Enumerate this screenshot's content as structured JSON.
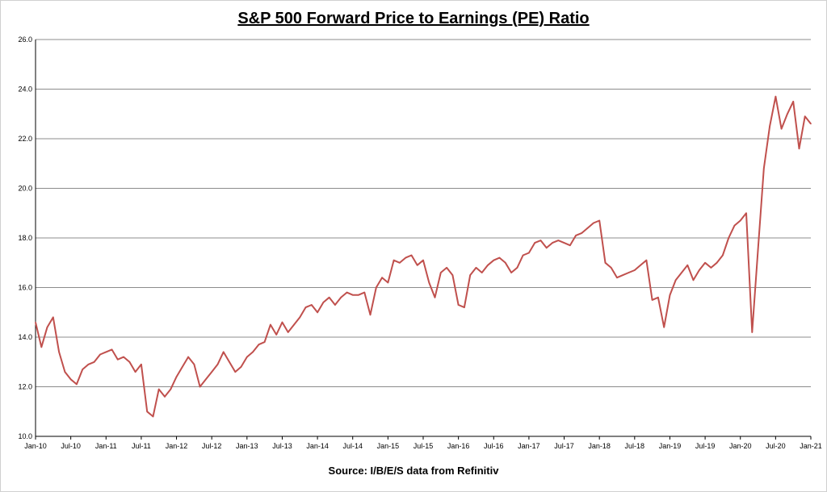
{
  "chart_data": {
    "type": "line",
    "title": "S&P 500 Forward Price to Earnings (PE) Ratio",
    "source": "Source: I/B/E/S data from Refinitiv",
    "xlabel": "",
    "ylabel": "",
    "ylim": [
      10.0,
      26.0
    ],
    "ytick_labels": [
      "10.0",
      "12.0",
      "14.0",
      "16.0",
      "18.0",
      "20.0",
      "22.0",
      "24.0",
      "26.0"
    ],
    "xtick_labels": [
      "Jan-10",
      "Jul-10",
      "Jan-11",
      "Jul-11",
      "Jan-12",
      "Jul-12",
      "Jan-13",
      "Jul-13",
      "Jan-14",
      "Jul-14",
      "Jan-15",
      "Jul-15",
      "Jan-16",
      "Jul-16",
      "Jan-17",
      "Jul-17",
      "Jan-18",
      "Jul-18",
      "Jan-19",
      "Jul-19",
      "Jan-20",
      "Jul-20",
      "Jan-21"
    ],
    "xlim_months": [
      "2010-01",
      "2021-01"
    ],
    "grid": "horizontal",
    "line_color": "#c0504d",
    "series": [
      {
        "points": [
          [
            "2010-01",
            14.6
          ],
          [
            "2010-02",
            13.6
          ],
          [
            "2010-03",
            14.4
          ],
          [
            "2010-04",
            14.8
          ],
          [
            "2010-05",
            13.4
          ],
          [
            "2010-06",
            12.6
          ],
          [
            "2010-07",
            12.3
          ],
          [
            "2010-08",
            12.1
          ],
          [
            "2010-09",
            12.7
          ],
          [
            "2010-10",
            12.9
          ],
          [
            "2010-11",
            13.0
          ],
          [
            "2010-12",
            13.3
          ],
          [
            "2011-01",
            13.4
          ],
          [
            "2011-02",
            13.5
          ],
          [
            "2011-03",
            13.1
          ],
          [
            "2011-04",
            13.2
          ],
          [
            "2011-05",
            13.0
          ],
          [
            "2011-06",
            12.6
          ],
          [
            "2011-07",
            12.9
          ],
          [
            "2011-08",
            11.0
          ],
          [
            "2011-09",
            10.8
          ],
          [
            "2011-10",
            11.9
          ],
          [
            "2011-11",
            11.6
          ],
          [
            "2011-12",
            11.9
          ],
          [
            "2012-01",
            12.4
          ],
          [
            "2012-02",
            12.8
          ],
          [
            "2012-03",
            13.2
          ],
          [
            "2012-04",
            12.9
          ],
          [
            "2012-05",
            12.0
          ],
          [
            "2012-06",
            12.3
          ],
          [
            "2012-07",
            12.6
          ],
          [
            "2012-08",
            12.9
          ],
          [
            "2012-09",
            13.4
          ],
          [
            "2012-10",
            13.0
          ],
          [
            "2012-11",
            12.6
          ],
          [
            "2012-12",
            12.8
          ],
          [
            "2013-01",
            13.2
          ],
          [
            "2013-02",
            13.4
          ],
          [
            "2013-03",
            13.7
          ],
          [
            "2013-04",
            13.8
          ],
          [
            "2013-05",
            14.5
          ],
          [
            "2013-06",
            14.1
          ],
          [
            "2013-07",
            14.6
          ],
          [
            "2013-08",
            14.2
          ],
          [
            "2013-09",
            14.5
          ],
          [
            "2013-10",
            14.8
          ],
          [
            "2013-11",
            15.2
          ],
          [
            "2013-12",
            15.3
          ],
          [
            "2014-01",
            15.0
          ],
          [
            "2014-02",
            15.4
          ],
          [
            "2014-03",
            15.6
          ],
          [
            "2014-04",
            15.3
          ],
          [
            "2014-05",
            15.6
          ],
          [
            "2014-06",
            15.8
          ],
          [
            "2014-07",
            15.7
          ],
          [
            "2014-08",
            15.7
          ],
          [
            "2014-09",
            15.8
          ],
          [
            "2014-10",
            14.9
          ],
          [
            "2014-11",
            16.0
          ],
          [
            "2014-12",
            16.4
          ],
          [
            "2015-01",
            16.2
          ],
          [
            "2015-02",
            17.1
          ],
          [
            "2015-03",
            17.0
          ],
          [
            "2015-04",
            17.2
          ],
          [
            "2015-05",
            17.3
          ],
          [
            "2015-06",
            16.9
          ],
          [
            "2015-07",
            17.1
          ],
          [
            "2015-08",
            16.2
          ],
          [
            "2015-09",
            15.6
          ],
          [
            "2015-10",
            16.6
          ],
          [
            "2015-11",
            16.8
          ],
          [
            "2015-12",
            16.5
          ],
          [
            "2016-01",
            15.3
          ],
          [
            "2016-02",
            15.2
          ],
          [
            "2016-03",
            16.5
          ],
          [
            "2016-04",
            16.8
          ],
          [
            "2016-05",
            16.6
          ],
          [
            "2016-06",
            16.9
          ],
          [
            "2016-07",
            17.1
          ],
          [
            "2016-08",
            17.2
          ],
          [
            "2016-09",
            17.0
          ],
          [
            "2016-10",
            16.6
          ],
          [
            "2016-11",
            16.8
          ],
          [
            "2016-12",
            17.3
          ],
          [
            "2017-01",
            17.4
          ],
          [
            "2017-02",
            17.8
          ],
          [
            "2017-03",
            17.9
          ],
          [
            "2017-04",
            17.6
          ],
          [
            "2017-05",
            17.8
          ],
          [
            "2017-06",
            17.9
          ],
          [
            "2017-07",
            17.8
          ],
          [
            "2017-08",
            17.7
          ],
          [
            "2017-09",
            18.1
          ],
          [
            "2017-10",
            18.2
          ],
          [
            "2017-11",
            18.4
          ],
          [
            "2017-12",
            18.6
          ],
          [
            "2018-01",
            18.7
          ],
          [
            "2018-02",
            17.0
          ],
          [
            "2018-03",
            16.8
          ],
          [
            "2018-04",
            16.4
          ],
          [
            "2018-05",
            16.5
          ],
          [
            "2018-06",
            16.6
          ],
          [
            "2018-07",
            16.7
          ],
          [
            "2018-08",
            16.9
          ],
          [
            "2018-09",
            17.1
          ],
          [
            "2018-10",
            15.5
          ],
          [
            "2018-11",
            15.6
          ],
          [
            "2018-12",
            14.4
          ],
          [
            "2019-01",
            15.7
          ],
          [
            "2019-02",
            16.3
          ],
          [
            "2019-03",
            16.6
          ],
          [
            "2019-04",
            16.9
          ],
          [
            "2019-05",
            16.3
          ],
          [
            "2019-06",
            16.7
          ],
          [
            "2019-07",
            17.0
          ],
          [
            "2019-08",
            16.8
          ],
          [
            "2019-09",
            17.0
          ],
          [
            "2019-10",
            17.3
          ],
          [
            "2019-11",
            18.0
          ],
          [
            "2019-12",
            18.5
          ],
          [
            "2020-01",
            18.7
          ],
          [
            "2020-02",
            19.0
          ],
          [
            "2020-03",
            14.2
          ],
          [
            "2020-04",
            17.5
          ],
          [
            "2020-05",
            20.8
          ],
          [
            "2020-06",
            22.5
          ],
          [
            "2020-07",
            23.7
          ],
          [
            "2020-08",
            22.4
          ],
          [
            "2020-09",
            23.0
          ],
          [
            "2020-10",
            23.5
          ],
          [
            "2020-11",
            21.6
          ],
          [
            "2020-12",
            22.9
          ],
          [
            "2021-01",
            22.6
          ]
        ]
      }
    ]
  }
}
